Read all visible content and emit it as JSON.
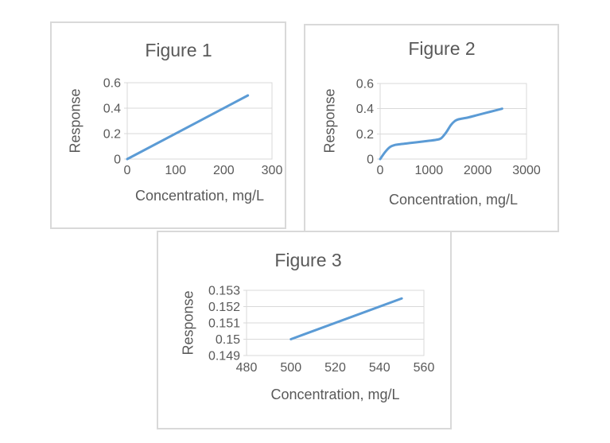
{
  "colors": {
    "line": "#5B9BD5",
    "gridline": "#D9D9D9",
    "panel_border": "#D9D9D9",
    "text": "#595959",
    "background": "#FFFFFF"
  },
  "chart_data": [
    {
      "type": "line",
      "title": "Figure 1",
      "xlabel": "Concentration, mg/L",
      "ylabel": "Response",
      "xlim": [
        0,
        300
      ],
      "ylim": [
        0,
        0.6
      ],
      "x_ticks": [
        0,
        100,
        200,
        300
      ],
      "x_tick_labels": [
        "0",
        "100",
        "200",
        "300"
      ],
      "y_ticks": [
        0,
        0.2,
        0.4,
        0.6
      ],
      "y_tick_labels": [
        "0",
        "0.2",
        "0.4",
        "0.6"
      ],
      "grid": "horizontal",
      "legend": "none",
      "smooth": false,
      "series": [
        {
          "points": [
            [
              0,
              0
            ],
            [
              250,
              0.5
            ]
          ]
        }
      ]
    },
    {
      "type": "line",
      "title": "Figure 2",
      "xlabel": "Concentration, mg/L",
      "ylabel": "Response",
      "xlim": [
        0,
        3000
      ],
      "ylim": [
        0,
        0.6
      ],
      "x_ticks": [
        0,
        1000,
        2000,
        3000
      ],
      "x_tick_labels": [
        "0",
        "1000",
        "2000",
        "3000"
      ],
      "y_ticks": [
        0,
        0.2,
        0.4,
        0.6
      ],
      "y_tick_labels": [
        "0",
        "0.2",
        "0.4",
        "0.6"
      ],
      "grid": "horizontal",
      "legend": "none",
      "smooth": true,
      "series": [
        {
          "points": [
            [
              0,
              0
            ],
            [
              100,
              0.055
            ],
            [
              200,
              0.095
            ],
            [
              300,
              0.112
            ],
            [
              450,
              0.12
            ],
            [
              600,
              0.127
            ],
            [
              800,
              0.136
            ],
            [
              1000,
              0.145
            ],
            [
              1150,
              0.153
            ],
            [
              1250,
              0.165
            ],
            [
              1350,
              0.21
            ],
            [
              1450,
              0.27
            ],
            [
              1525,
              0.3
            ],
            [
              1600,
              0.315
            ],
            [
              1800,
              0.33
            ],
            [
              2000,
              0.35
            ],
            [
              2250,
              0.375
            ],
            [
              2500,
              0.4
            ]
          ]
        }
      ]
    },
    {
      "type": "line",
      "title": "Figure 3",
      "xlabel": "Concentration, mg/L",
      "ylabel": "Response",
      "xlim": [
        480,
        560
      ],
      "ylim": [
        0.149,
        0.153
      ],
      "x_ticks": [
        480,
        500,
        520,
        540,
        560
      ],
      "x_tick_labels": [
        "480",
        "500",
        "520",
        "540",
        "560"
      ],
      "y_ticks": [
        0.149,
        0.15,
        0.151,
        0.152,
        0.153
      ],
      "y_tick_labels": [
        "0.149",
        "0.15",
        "0.151",
        "0.152",
        "0.153"
      ],
      "grid": "horizontal",
      "legend": "none",
      "smooth": false,
      "series": [
        {
          "points": [
            [
              500,
              0.15
            ],
            [
              550,
              0.1525
            ]
          ]
        }
      ]
    }
  ]
}
